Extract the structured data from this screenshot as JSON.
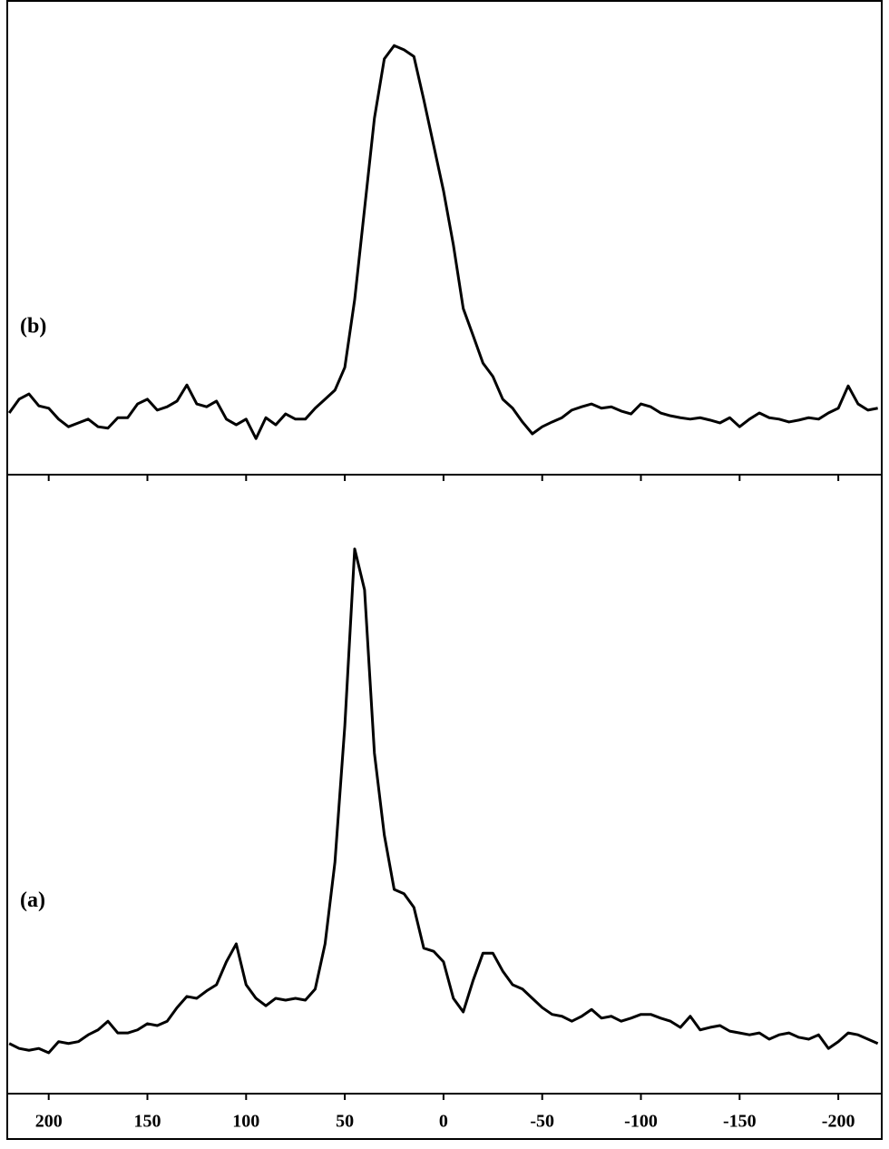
{
  "chart_data": [
    {
      "type": "line",
      "annotation": "(b)",
      "color": "#000000",
      "xlim": [
        221,
        -222
      ],
      "ylim": [
        0,
        100
      ],
      "x": [
        220,
        215,
        210,
        205,
        200,
        195,
        190,
        185,
        180,
        175,
        170,
        165,
        160,
        155,
        150,
        145,
        140,
        135,
        130,
        125,
        120,
        115,
        110,
        105,
        100,
        95,
        90,
        85,
        80,
        75,
        70,
        65,
        60,
        55,
        50,
        45,
        40,
        35,
        30,
        25,
        20,
        15,
        10,
        5,
        0,
        -5,
        -10,
        -15,
        -20,
        -25,
        -30,
        -35,
        -40,
        -45,
        -50,
        -55,
        -60,
        -65,
        -70,
        -75,
        -80,
        -85,
        -90,
        -95,
        -100,
        -105,
        -110,
        -115,
        -120,
        -125,
        -130,
        -135,
        -140,
        -145,
        -150,
        -155,
        -160,
        -165,
        -170,
        -175,
        -180,
        -185,
        -190,
        -195,
        -200,
        -205,
        -210,
        -215,
        -220
      ],
      "values": [
        13.0,
        15.9,
        17.0,
        14.5,
        14.0,
        11.7,
        10.1,
        10.9,
        11.7,
        10.1,
        9.8,
        12.0,
        12.0,
        14.9,
        15.9,
        13.6,
        14.3,
        15.5,
        18.9,
        14.9,
        14.3,
        15.5,
        11.7,
        10.5,
        11.7,
        7.6,
        12.0,
        10.5,
        12.8,
        11.7,
        11.7,
        14.0,
        15.9,
        17.8,
        22.6,
        36.9,
        56.0,
        75.1,
        87.6,
        90.4,
        89.5,
        88.1,
        79.0,
        69.4,
        59.8,
        48.4,
        35.0,
        29.3,
        23.5,
        20.7,
        15.9,
        14.0,
        11.1,
        8.6,
        10.1,
        11.1,
        12.0,
        13.6,
        14.3,
        14.9,
        14.0,
        14.3,
        13.4,
        12.8,
        14.9,
        14.3,
        13.0,
        12.4,
        12.0,
        11.7,
        12.0,
        11.5,
        10.9,
        12.0,
        10.1,
        11.7,
        13.0,
        12.0,
        11.7,
        11.1,
        11.5,
        12.0,
        11.7,
        13.0,
        14.0,
        18.7,
        14.9,
        13.6,
        14.0
      ]
    },
    {
      "type": "line",
      "annotation": "(a)",
      "color": "#000000",
      "xlim": [
        221,
        -222
      ],
      "ylim": [
        0,
        100
      ],
      "xticks": [
        200,
        150,
        100,
        50,
        0,
        -50,
        -100,
        -150,
        -200
      ],
      "x": [
        220,
        215,
        210,
        205,
        200,
        195,
        190,
        185,
        180,
        175,
        170,
        165,
        160,
        155,
        150,
        145,
        140,
        135,
        130,
        125,
        120,
        115,
        110,
        105,
        100,
        95,
        90,
        85,
        80,
        75,
        70,
        65,
        60,
        55,
        50,
        45,
        40,
        35,
        30,
        25,
        20,
        15,
        10,
        5,
        0,
        -5,
        -10,
        -15,
        -20,
        -25,
        -30,
        -35,
        -40,
        -45,
        -50,
        -55,
        -60,
        -65,
        -70,
        -75,
        -80,
        -85,
        -90,
        -95,
        -100,
        -105,
        -110,
        -115,
        -120,
        -125,
        -130,
        -135,
        -140,
        -145,
        -150,
        -155,
        -160,
        -165,
        -170,
        -175,
        -180,
        -185,
        -190,
        -195,
        -200,
        -205,
        -210,
        -215,
        -220
      ],
      "values": [
        8.1,
        7.3,
        7.0,
        7.3,
        6.6,
        8.4,
        8.1,
        8.4,
        9.5,
        10.3,
        11.7,
        9.8,
        9.8,
        10.3,
        11.3,
        11.0,
        11.7,
        13.9,
        15.7,
        15.4,
        16.6,
        17.6,
        21.3,
        24.2,
        17.6,
        15.4,
        14.2,
        15.4,
        15.1,
        15.4,
        15.1,
        16.9,
        24.2,
        37.4,
        59.4,
        88.0,
        81.4,
        55.0,
        41.8,
        33.0,
        32.3,
        30.1,
        23.5,
        23.0,
        21.3,
        15.4,
        13.2,
        18.3,
        22.7,
        22.7,
        19.8,
        17.6,
        16.9,
        15.4,
        13.9,
        12.8,
        12.5,
        11.7,
        12.5,
        13.6,
        12.2,
        12.5,
        11.7,
        12.2,
        12.8,
        12.8,
        12.2,
        11.7,
        10.7,
        12.5,
        10.3,
        10.7,
        11.0,
        10.1,
        9.8,
        9.5,
        9.8,
        8.8,
        9.5,
        9.8,
        9.1,
        8.8,
        9.5,
        7.3,
        8.4,
        9.8,
        9.5,
        8.8,
        8.1
      ]
    }
  ]
}
